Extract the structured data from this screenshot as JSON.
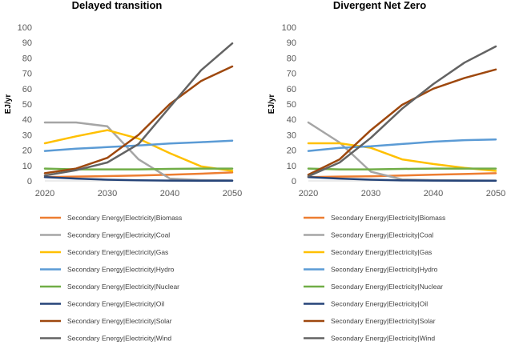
{
  "chart_data": [
    {
      "type": "line",
      "title": "Delayed transition",
      "ylabel": "EJ/yr",
      "xlabel": "",
      "x": [
        2020,
        2025,
        2030,
        2035,
        2040,
        2045,
        2050
      ],
      "xticks": [
        "2020",
        "2030",
        "2040",
        "2050"
      ],
      "yticks": [
        "0",
        "10",
        "20",
        "30",
        "40",
        "50",
        "60",
        "70",
        "80",
        "90",
        "100"
      ],
      "xlim": [
        2020,
        2050
      ],
      "ylim": [
        0,
        100
      ],
      "grid": false,
      "legend_position": "bottom",
      "series": [
        {
          "name": "Secondary Energy|Electricity|Biomass",
          "color": "#ED7D31",
          "values": [
            2.5,
            2.8,
            3.1,
            3.5,
            4.0,
            4.7,
            5.5
          ]
        },
        {
          "name": "Secondary Energy|Electricity|Coal",
          "color": "#A5A5A5",
          "values": [
            38,
            38,
            35.5,
            14,
            1.5,
            0.5,
            0.3
          ]
        },
        {
          "name": "Secondary Energy|Electricity|Gas",
          "color": "#FFC000",
          "values": [
            24.5,
            29,
            33,
            27.5,
            18,
            9.5,
            6.5
          ]
        },
        {
          "name": "Secondary Energy|Electricity|Hydro",
          "color": "#5B9BD5",
          "values": [
            19.5,
            21,
            22,
            23,
            24.3,
            25.2,
            26.2
          ]
        },
        {
          "name": "Secondary Energy|Electricity|Nuclear",
          "color": "#70AD47",
          "values": [
            8,
            7.5,
            7.5,
            7.5,
            7.8,
            8,
            8
          ]
        },
        {
          "name": "Secondary Energy|Electricity|Oil",
          "color": "#264478",
          "values": [
            2.5,
            1.5,
            0.8,
            0.4,
            0.2,
            0.1,
            0.1
          ]
        },
        {
          "name": "Secondary Energy|Electricity|Solar",
          "color": "#9E480E",
          "values": [
            5,
            8,
            15,
            30,
            50,
            65,
            74.5
          ]
        },
        {
          "name": "Secondary Energy|Electricity|Wind",
          "color": "#636363",
          "values": [
            3.5,
            7,
            12,
            24,
            48,
            72,
            89.5
          ]
        }
      ]
    },
    {
      "type": "line",
      "title": "Divergent Net Zero",
      "ylabel": "EJ/yr",
      "xlabel": "",
      "x": [
        2020,
        2025,
        2030,
        2035,
        2040,
        2045,
        2050
      ],
      "xticks": [
        "2020",
        "2030",
        "2040",
        "2050"
      ],
      "yticks": [
        "0",
        "10",
        "20",
        "30",
        "40",
        "50",
        "60",
        "70",
        "80",
        "90",
        "100"
      ],
      "xlim": [
        2020,
        2050
      ],
      "ylim": [
        0,
        100
      ],
      "grid": false,
      "legend_position": "bottom",
      "series": [
        {
          "name": "Secondary Energy|Electricity|Biomass",
          "color": "#ED7D31",
          "values": [
            2.5,
            2.8,
            3.0,
            3.5,
            4.0,
            4.5,
            5.0
          ]
        },
        {
          "name": "Secondary Energy|Electricity|Coal",
          "color": "#A5A5A5",
          "values": [
            38,
            25,
            6,
            1,
            0.5,
            0.3,
            0.2
          ]
        },
        {
          "name": "Secondary Energy|Electricity|Gas",
          "color": "#FFC000",
          "values": [
            24.5,
            24.5,
            21.5,
            14,
            11,
            8.5,
            6.5
          ]
        },
        {
          "name": "Secondary Energy|Electricity|Hydro",
          "color": "#5B9BD5",
          "values": [
            19.5,
            21.5,
            22.5,
            24,
            25.5,
            26.5,
            27
          ]
        },
        {
          "name": "Secondary Energy|Electricity|Nuclear",
          "color": "#70AD47",
          "values": [
            8,
            7.5,
            7.5,
            7.8,
            8,
            8,
            8
          ]
        },
        {
          "name": "Secondary Energy|Electricity|Oil",
          "color": "#264478",
          "values": [
            2.5,
            1.5,
            0.8,
            0.3,
            0.2,
            0.1,
            0.1
          ]
        },
        {
          "name": "Secondary Energy|Electricity|Solar",
          "color": "#9E480E",
          "values": [
            4,
            14,
            33,
            49.5,
            60,
            67,
            72.5
          ]
        },
        {
          "name": "Secondary Energy|Electricity|Wind",
          "color": "#636363",
          "values": [
            3,
            12,
            28,
            47,
            63,
            77,
            87.5
          ]
        }
      ]
    }
  ]
}
